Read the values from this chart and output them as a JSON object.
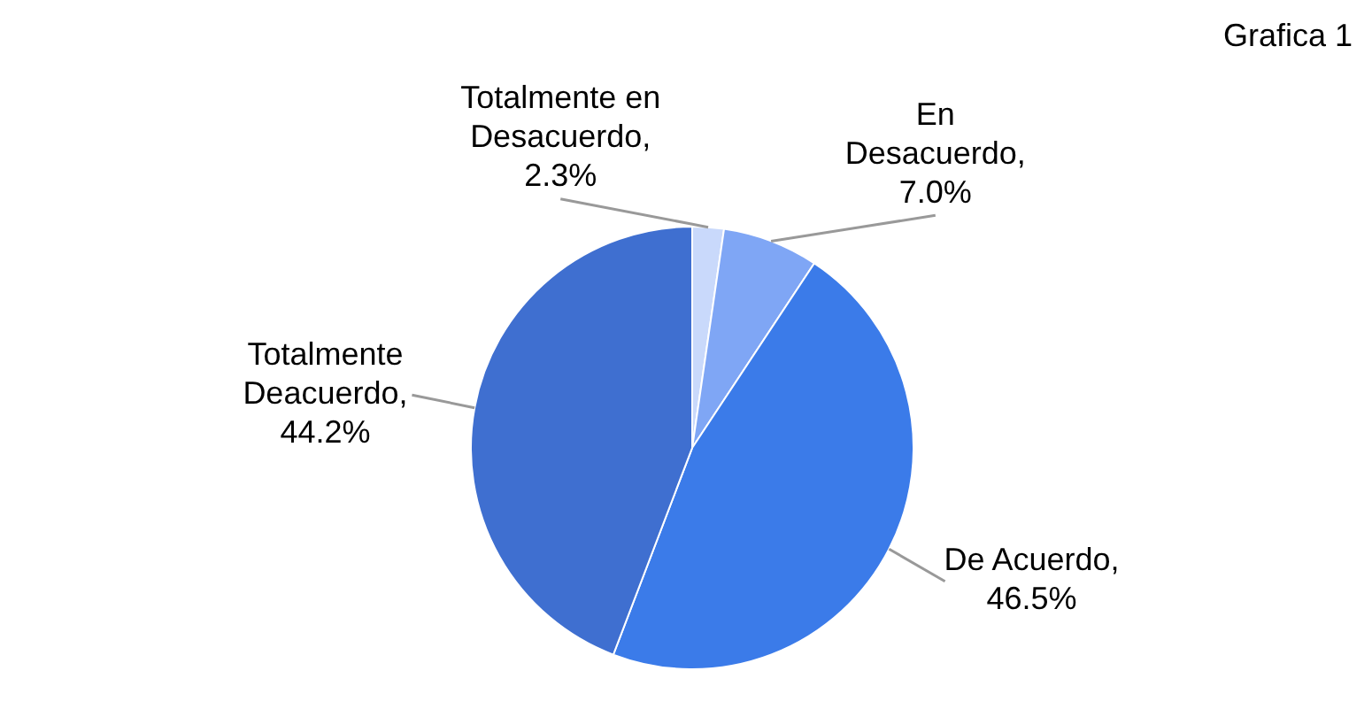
{
  "chart_data": {
    "type": "pie",
    "title": "Grafica 1",
    "categories": [
      "Totalmente en Desacuerdo",
      "En Desacuerdo",
      "De Acuerdo",
      "Totalmente Deacuerdo"
    ],
    "values": [
      2.3,
      7.0,
      46.5,
      44.2
    ],
    "value_labels": [
      ",2.3%",
      ",7.0%",
      ",46.5%",
      ",44.2%"
    ],
    "colors": [
      "#c9d9fb",
      "#7fa6f5",
      "#3b7be9",
      "#3f6fd0"
    ]
  }
}
